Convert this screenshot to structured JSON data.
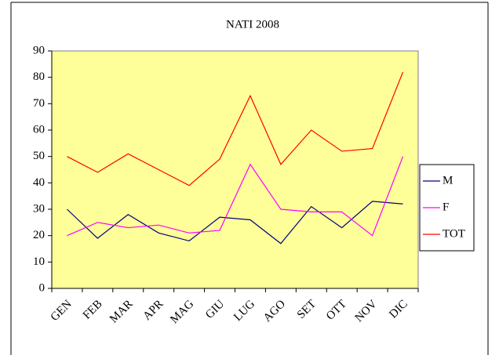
{
  "chart_data": {
    "type": "line",
    "title": "NATI 2008",
    "categories": [
      "GEN",
      "FEB",
      "MAR",
      "APR",
      "MAG",
      "GIU",
      "LUG",
      "AGO",
      "SET",
      "OTT",
      "NOV",
      "DIC"
    ],
    "series": [
      {
        "name": "M",
        "color": "#000080",
        "values": [
          30,
          19,
          28,
          21,
          18,
          27,
          26,
          17,
          31,
          23,
          33,
          32
        ]
      },
      {
        "name": "F",
        "color": "#ff00ff",
        "values": [
          20,
          25,
          23,
          24,
          21,
          22,
          47,
          30,
          29,
          29,
          20,
          50
        ]
      },
      {
        "name": "TOT",
        "color": "#ff0000",
        "values": [
          50,
          44,
          51,
          45,
          39,
          49,
          73,
          47,
          60,
          52,
          53,
          82
        ]
      }
    ],
    "ylim": [
      0,
      90
    ],
    "yticks": [
      0,
      10,
      20,
      30,
      40,
      50,
      60,
      70,
      80,
      90
    ],
    "grid": false,
    "legend": "right",
    "plot_background": "#ffff99"
  }
}
